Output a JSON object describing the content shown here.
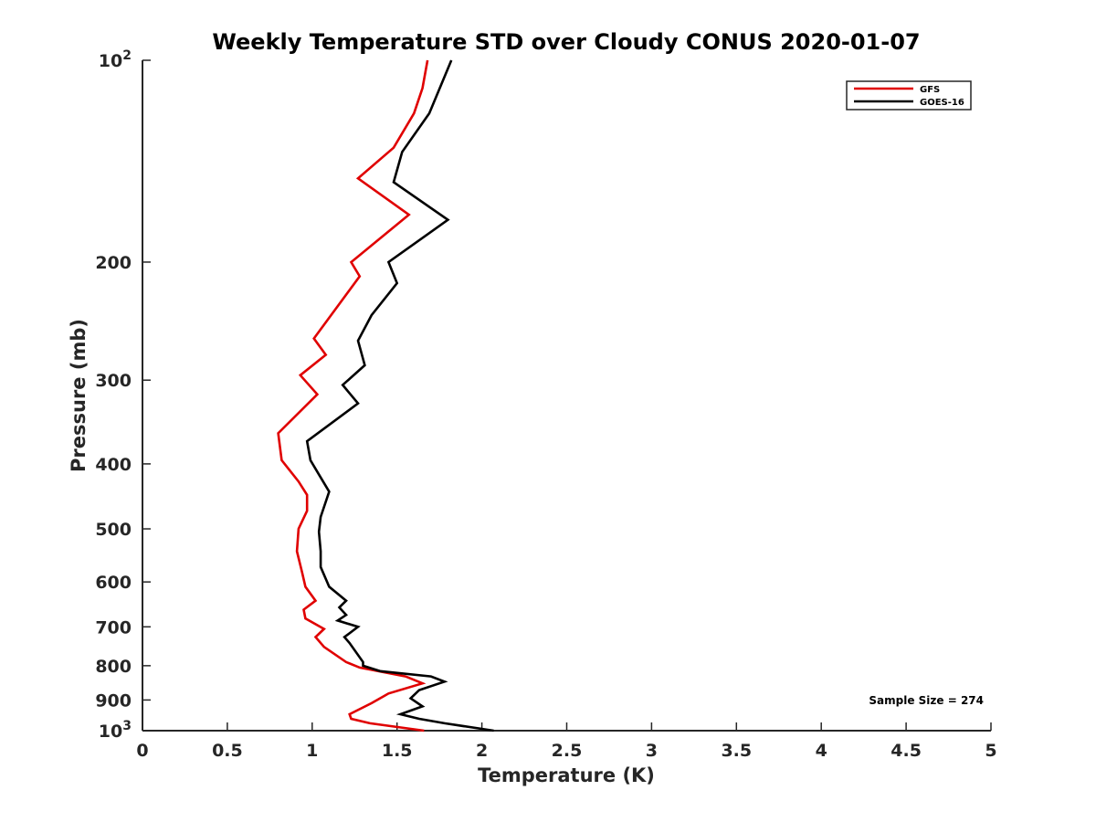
{
  "chart_data": {
    "type": "line",
    "title": "Weekly Temperature STD over Cloudy CONUS 2020-01-07",
    "xlabel": "Temperature (K)",
    "ylabel": "Pressure (mb)",
    "xlim": [
      0,
      5
    ],
    "ylim": [
      1000,
      100
    ],
    "yscale": "log",
    "grid": false,
    "legend_position": "top-right",
    "x_ticks": [
      {
        "value": 0,
        "label": "0"
      },
      {
        "value": 0.5,
        "label": "0.5"
      },
      {
        "value": 1,
        "label": "1"
      },
      {
        "value": 1.5,
        "label": "1.5"
      },
      {
        "value": 2,
        "label": "2"
      },
      {
        "value": 2.5,
        "label": "2.5"
      },
      {
        "value": 3,
        "label": "3"
      },
      {
        "value": 3.5,
        "label": "3.5"
      },
      {
        "value": 4,
        "label": "4"
      },
      {
        "value": 4.5,
        "label": "4.5"
      },
      {
        "value": 5,
        "label": "5"
      }
    ],
    "y_ticks": [
      {
        "value": 100,
        "base": "10",
        "exp": "2"
      },
      {
        "value": 200,
        "label": "200"
      },
      {
        "value": 300,
        "label": "300"
      },
      {
        "value": 400,
        "label": "400"
      },
      {
        "value": 500,
        "label": "500"
      },
      {
        "value": 600,
        "label": "600"
      },
      {
        "value": 700,
        "label": "700"
      },
      {
        "value": 800,
        "label": "800"
      },
      {
        "value": 900,
        "label": "900"
      },
      {
        "value": 1000,
        "base": "10",
        "exp": "3"
      }
    ],
    "annotation": "Sample Size = 274",
    "series": [
      {
        "name": "GFS",
        "color": "#e00000",
        "points": [
          [
            1.68,
            100
          ],
          [
            1.65,
            110
          ],
          [
            1.6,
            120
          ],
          [
            1.48,
            135
          ],
          [
            1.27,
            150
          ],
          [
            1.57,
            170
          ],
          [
            1.23,
            200
          ],
          [
            1.28,
            210
          ],
          [
            1.01,
            260
          ],
          [
            1.08,
            275
          ],
          [
            0.93,
            295
          ],
          [
            1.03,
            315
          ],
          [
            0.8,
            360
          ],
          [
            0.82,
            395
          ],
          [
            0.92,
            425
          ],
          [
            0.97,
            445
          ],
          [
            0.97,
            470
          ],
          [
            0.92,
            500
          ],
          [
            0.91,
            540
          ],
          [
            0.94,
            580
          ],
          [
            0.96,
            610
          ],
          [
            1.02,
            640
          ],
          [
            0.95,
            660
          ],
          [
            0.96,
            680
          ],
          [
            1.07,
            705
          ],
          [
            1.02,
            725
          ],
          [
            1.07,
            750
          ],
          [
            1.2,
            790
          ],
          [
            1.28,
            805
          ],
          [
            1.55,
            830
          ],
          [
            1.65,
            850
          ],
          [
            1.45,
            880
          ],
          [
            1.35,
            910
          ],
          [
            1.22,
            945
          ],
          [
            1.23,
            960
          ],
          [
            1.34,
            975
          ],
          [
            1.66,
            1000
          ]
        ]
      },
      {
        "name": "GOES-16",
        "color": "#000000",
        "points": [
          [
            1.82,
            100
          ],
          [
            1.69,
            120
          ],
          [
            1.53,
            137
          ],
          [
            1.48,
            152
          ],
          [
            1.8,
            173
          ],
          [
            1.45,
            200
          ],
          [
            1.5,
            215
          ],
          [
            1.35,
            240
          ],
          [
            1.27,
            262
          ],
          [
            1.31,
            285
          ],
          [
            1.18,
            305
          ],
          [
            1.27,
            325
          ],
          [
            0.97,
            370
          ],
          [
            0.99,
            395
          ],
          [
            1.04,
            415
          ],
          [
            1.1,
            440
          ],
          [
            1.05,
            480
          ],
          [
            1.04,
            505
          ],
          [
            1.05,
            540
          ],
          [
            1.05,
            570
          ],
          [
            1.1,
            610
          ],
          [
            1.2,
            640
          ],
          [
            1.16,
            655
          ],
          [
            1.2,
            672
          ],
          [
            1.15,
            685
          ],
          [
            1.27,
            700
          ],
          [
            1.19,
            725
          ],
          [
            1.22,
            740
          ],
          [
            1.3,
            790
          ],
          [
            1.3,
            800
          ],
          [
            1.4,
            815
          ],
          [
            1.7,
            830
          ],
          [
            1.78,
            845
          ],
          [
            1.63,
            870
          ],
          [
            1.58,
            895
          ],
          [
            1.65,
            920
          ],
          [
            1.52,
            945
          ],
          [
            1.63,
            960
          ],
          [
            1.78,
            975
          ],
          [
            2.07,
            1000
          ]
        ]
      }
    ]
  }
}
